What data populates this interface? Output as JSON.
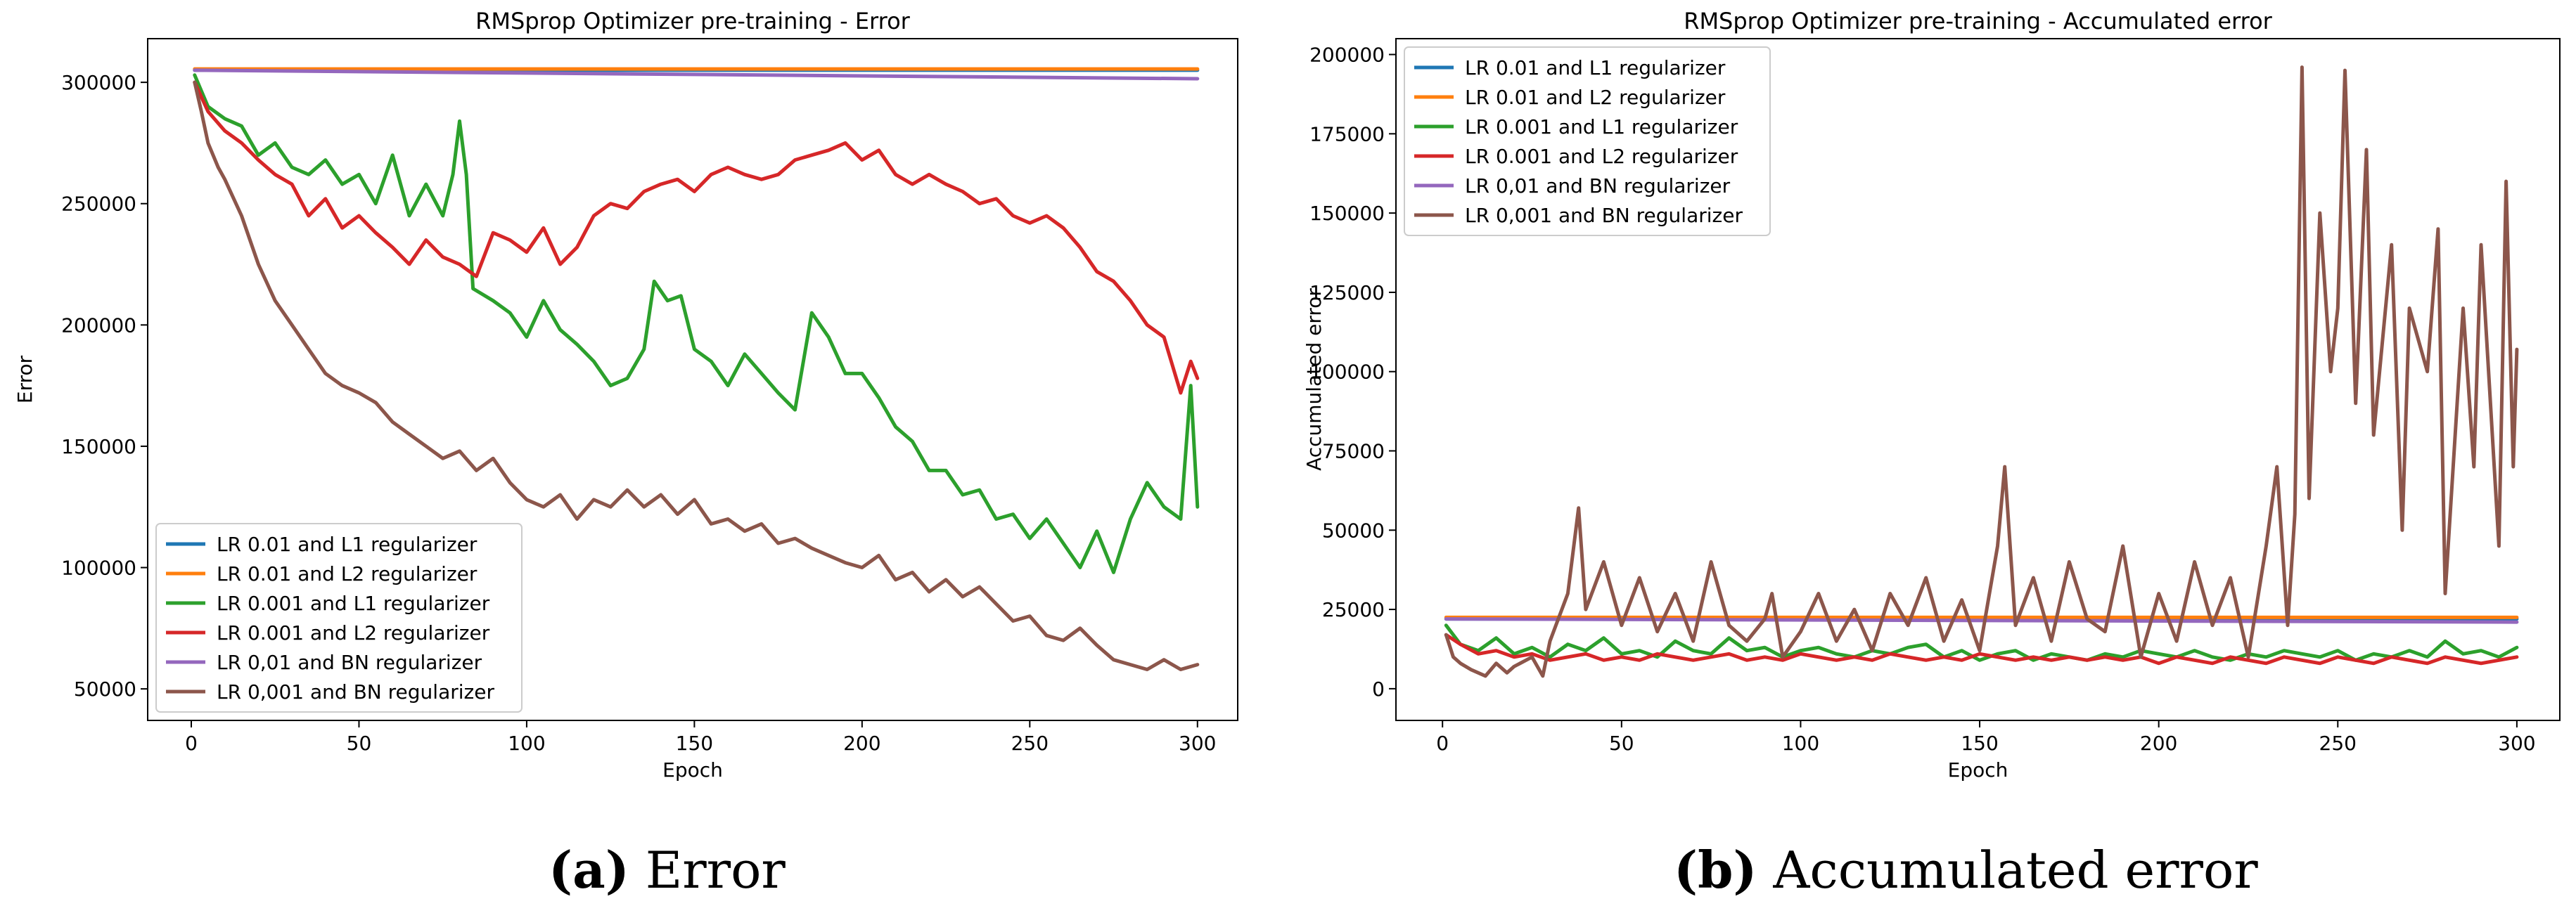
{
  "chart_data": [
    {
      "type": "line",
      "title": "RMSprop Optimizer pre-training - Error",
      "xlabel": "Epoch",
      "ylabel": "Error",
      "xlim": [
        -13,
        312
      ],
      "ylim": [
        37000,
        318000
      ],
      "xticks": [
        0,
        50,
        100,
        150,
        200,
        250,
        300
      ],
      "xtick_labels": [
        "0",
        "50",
        "100",
        "150",
        "200",
        "250",
        "300"
      ],
      "yticks": [
        50000,
        100000,
        150000,
        200000,
        250000,
        300000
      ],
      "ytick_labels": [
        "50000",
        "100000",
        "150000",
        "200000",
        "250000",
        "300000"
      ],
      "legend_position": "lower-left",
      "caption_letter": "(a)",
      "caption_text": "Error",
      "series": [
        {
          "name": "LR 0.01 and L1 regularizer",
          "color": "#1f77b4",
          "x": [
            1,
            300
          ],
          "y": [
            305000,
            305000
          ]
        },
        {
          "name": "LR 0.01 and L2 regularizer",
          "color": "#ff7f0e",
          "x": [
            1,
            300
          ],
          "y": [
            305500,
            305500
          ]
        },
        {
          "name": "LR 0.001 and L1 regularizer",
          "color": "#2ca02c",
          "x": [
            1,
            5,
            10,
            15,
            20,
            25,
            30,
            35,
            40,
            45,
            50,
            55,
            60,
            65,
            70,
            75,
            78,
            80,
            82,
            84,
            90,
            95,
            100,
            105,
            110,
            115,
            120,
            125,
            130,
            135,
            138,
            142,
            146,
            150,
            155,
            160,
            165,
            170,
            175,
            180,
            185,
            190,
            195,
            200,
            205,
            210,
            215,
            220,
            225,
            230,
            235,
            240,
            245,
            250,
            255,
            260,
            265,
            270,
            275,
            280,
            285,
            290,
            295,
            298,
            300
          ],
          "y": [
            303000,
            290000,
            285000,
            282000,
            270000,
            275000,
            265000,
            262000,
            268000,
            258000,
            262000,
            250000,
            270000,
            245000,
            258000,
            245000,
            262000,
            284000,
            262000,
            215000,
            210000,
            205000,
            195000,
            210000,
            198000,
            192000,
            185000,
            175000,
            178000,
            190000,
            218000,
            210000,
            212000,
            190000,
            185000,
            175000,
            188000,
            180000,
            172000,
            165000,
            205000,
            195000,
            180000,
            180000,
            170000,
            158000,
            152000,
            140000,
            140000,
            130000,
            132000,
            120000,
            122000,
            112000,
            120000,
            110000,
            100000,
            115000,
            98000,
            120000,
            135000,
            125000,
            120000,
            175000,
            125000
          ]
        },
        {
          "name": "LR 0.001 and L2 regularizer",
          "color": "#d62728",
          "x": [
            1,
            5,
            10,
            15,
            20,
            25,
            30,
            35,
            40,
            45,
            50,
            55,
            60,
            65,
            70,
            75,
            80,
            85,
            90,
            95,
            100,
            105,
            110,
            115,
            120,
            125,
            130,
            135,
            140,
            145,
            150,
            155,
            160,
            165,
            170,
            175,
            180,
            185,
            190,
            195,
            200,
            205,
            210,
            215,
            220,
            225,
            230,
            235,
            240,
            245,
            250,
            255,
            260,
            265,
            270,
            275,
            280,
            285,
            290,
            295,
            298,
            300
          ],
          "y": [
            300000,
            288000,
            280000,
            275000,
            268000,
            262000,
            258000,
            245000,
            252000,
            240000,
            245000,
            238000,
            232000,
            225000,
            235000,
            228000,
            225000,
            220000,
            238000,
            235000,
            230000,
            240000,
            225000,
            232000,
            245000,
            250000,
            248000,
            255000,
            258000,
            260000,
            255000,
            262000,
            265000,
            262000,
            260000,
            262000,
            268000,
            270000,
            272000,
            275000,
            268000,
            272000,
            262000,
            258000,
            262000,
            258000,
            255000,
            250000,
            252000,
            245000,
            242000,
            245000,
            240000,
            232000,
            222000,
            218000,
            210000,
            200000,
            195000,
            172000,
            185000,
            178000
          ]
        },
        {
          "name": "LR 0,01 and BN regularizer",
          "color": "#9467bd",
          "x": [
            1,
            300
          ],
          "y": [
            305000,
            301500
          ]
        },
        {
          "name": "LR 0,001 and BN regularizer",
          "color": "#8c564b",
          "x": [
            1,
            3,
            5,
            8,
            10,
            15,
            20,
            25,
            30,
            35,
            40,
            45,
            50,
            55,
            60,
            65,
            70,
            75,
            80,
            85,
            90,
            95,
            100,
            105,
            110,
            115,
            120,
            125,
            130,
            135,
            140,
            145,
            150,
            155,
            160,
            165,
            170,
            175,
            180,
            185,
            190,
            195,
            200,
            205,
            210,
            215,
            220,
            225,
            230,
            235,
            240,
            245,
            250,
            255,
            260,
            265,
            270,
            275,
            280,
            285,
            290,
            295,
            300
          ],
          "y": [
            300000,
            288000,
            275000,
            265000,
            260000,
            245000,
            225000,
            210000,
            200000,
            190000,
            180000,
            175000,
            172000,
            168000,
            160000,
            155000,
            150000,
            145000,
            148000,
            140000,
            145000,
            135000,
            128000,
            125000,
            130000,
            120000,
            128000,
            125000,
            132000,
            125000,
            130000,
            122000,
            128000,
            118000,
            120000,
            115000,
            118000,
            110000,
            112000,
            108000,
            105000,
            102000,
            100000,
            105000,
            95000,
            98000,
            90000,
            95000,
            88000,
            92000,
            85000,
            78000,
            80000,
            72000,
            70000,
            75000,
            68000,
            62000,
            60000,
            58000,
            62000,
            58000,
            60000
          ]
        }
      ]
    },
    {
      "type": "line",
      "title": "RMSprop Optimizer pre-training - Accumulated error",
      "xlabel": "Epoch",
      "ylabel": "Accumulated error",
      "xlim": [
        -13,
        312
      ],
      "ylim": [
        -10000,
        205000
      ],
      "xticks": [
        0,
        50,
        100,
        150,
        200,
        250,
        300
      ],
      "xtick_labels": [
        "0",
        "50",
        "100",
        "150",
        "200",
        "250",
        "300"
      ],
      "yticks": [
        0,
        25000,
        50000,
        75000,
        100000,
        125000,
        150000,
        175000,
        200000
      ],
      "ytick_labels": [
        "0",
        "25000",
        "50000",
        "75000",
        "100000",
        "125000",
        "150000",
        "175000",
        "200000"
      ],
      "legend_position": "upper-left",
      "caption_letter": "(b)",
      "caption_text": "Accumulated error",
      "series": [
        {
          "name": "LR 0.01 and L1 regularizer",
          "color": "#1f77b4",
          "x": [
            1,
            300
          ],
          "y": [
            22000,
            22000
          ]
        },
        {
          "name": "LR 0.01 and L2 regularizer",
          "color": "#ff7f0e",
          "x": [
            1,
            300
          ],
          "y": [
            22500,
            22500
          ]
        },
        {
          "name": "LR 0.001 and L1 regularizer",
          "color": "#2ca02c",
          "x": [
            1,
            5,
            10,
            15,
            20,
            25,
            30,
            35,
            40,
            45,
            50,
            55,
            60,
            65,
            70,
            75,
            80,
            85,
            90,
            95,
            100,
            105,
            110,
            115,
            120,
            125,
            130,
            135,
            140,
            145,
            150,
            155,
            160,
            165,
            170,
            175,
            180,
            185,
            190,
            195,
            200,
            205,
            210,
            215,
            220,
            225,
            230,
            235,
            240,
            245,
            250,
            255,
            260,
            265,
            270,
            275,
            280,
            285,
            290,
            295,
            300
          ],
          "y": [
            20000,
            14000,
            12000,
            16000,
            11000,
            13000,
            10000,
            14000,
            12000,
            16000,
            11000,
            12000,
            10000,
            15000,
            12000,
            11000,
            16000,
            12000,
            13000,
            10000,
            12000,
            13000,
            11000,
            10000,
            12000,
            11000,
            13000,
            14000,
            10000,
            12000,
            9000,
            11000,
            12000,
            9000,
            11000,
            10000,
            9000,
            11000,
            10000,
            12000,
            11000,
            10000,
            12000,
            10000,
            9000,
            11000,
            10000,
            12000,
            11000,
            10000,
            12000,
            9000,
            11000,
            10000,
            12000,
            10000,
            15000,
            11000,
            12000,
            10000,
            13000
          ]
        },
        {
          "name": "LR 0.001 and L2 regularizer",
          "color": "#d62728",
          "x": [
            1,
            5,
            10,
            15,
            20,
            25,
            30,
            35,
            40,
            45,
            50,
            55,
            60,
            65,
            70,
            75,
            80,
            85,
            90,
            95,
            100,
            105,
            110,
            115,
            120,
            125,
            130,
            135,
            140,
            145,
            150,
            155,
            160,
            165,
            170,
            175,
            180,
            185,
            190,
            195,
            200,
            205,
            210,
            215,
            220,
            225,
            230,
            235,
            240,
            245,
            250,
            255,
            260,
            265,
            270,
            275,
            280,
            285,
            290,
            295,
            300
          ],
          "y": [
            17000,
            14000,
            11000,
            12000,
            10000,
            11000,
            9000,
            10000,
            11000,
            9000,
            10000,
            9000,
            11000,
            10000,
            9000,
            10000,
            11000,
            9000,
            10000,
            9000,
            11000,
            10000,
            9000,
            10000,
            9000,
            11000,
            10000,
            9000,
            10000,
            9000,
            11000,
            10000,
            9000,
            10000,
            9000,
            10000,
            9000,
            10000,
            9000,
            10000,
            8000,
            10000,
            9000,
            8000,
            10000,
            9000,
            8000,
            10000,
            9000,
            8000,
            10000,
            9000,
            8000,
            10000,
            9000,
            8000,
            10000,
            9000,
            8000,
            9000,
            10000
          ]
        },
        {
          "name": "LR 0,01 and BN regularizer",
          "color": "#9467bd",
          "x": [
            1,
            300
          ],
          "y": [
            22000,
            21000
          ]
        },
        {
          "name": "LR 0,001 and BN regularizer",
          "color": "#8c564b",
          "x": [
            1,
            3,
            5,
            8,
            10,
            12,
            15,
            18,
            20,
            25,
            28,
            30,
            35,
            38,
            40,
            45,
            50,
            55,
            60,
            65,
            70,
            75,
            80,
            85,
            90,
            92,
            95,
            100,
            105,
            110,
            115,
            120,
            125,
            130,
            135,
            140,
            145,
            150,
            155,
            157,
            160,
            165,
            170,
            175,
            180,
            185,
            190,
            195,
            200,
            205,
            210,
            215,
            220,
            225,
            230,
            233,
            236,
            238,
            240,
            242,
            245,
            248,
            250,
            252,
            255,
            258,
            260,
            265,
            268,
            270,
            275,
            278,
            280,
            285,
            288,
            290,
            295,
            297,
            299,
            300
          ],
          "y": [
            17000,
            10000,
            8000,
            6000,
            5000,
            4000,
            8000,
            5000,
            7000,
            10000,
            4000,
            15000,
            30000,
            57000,
            25000,
            40000,
            20000,
            35000,
            18000,
            30000,
            15000,
            40000,
            20000,
            15000,
            22000,
            30000,
            10000,
            18000,
            30000,
            15000,
            25000,
            12000,
            30000,
            20000,
            35000,
            15000,
            28000,
            12000,
            45000,
            70000,
            20000,
            35000,
            15000,
            40000,
            22000,
            18000,
            45000,
            10000,
            30000,
            15000,
            40000,
            20000,
            35000,
            10000,
            45000,
            70000,
            20000,
            55000,
            196000,
            60000,
            150000,
            100000,
            120000,
            195000,
            90000,
            170000,
            80000,
            140000,
            50000,
            120000,
            100000,
            145000,
            30000,
            120000,
            70000,
            140000,
            45000,
            160000,
            70000,
            107000
          ]
        }
      ]
    }
  ]
}
